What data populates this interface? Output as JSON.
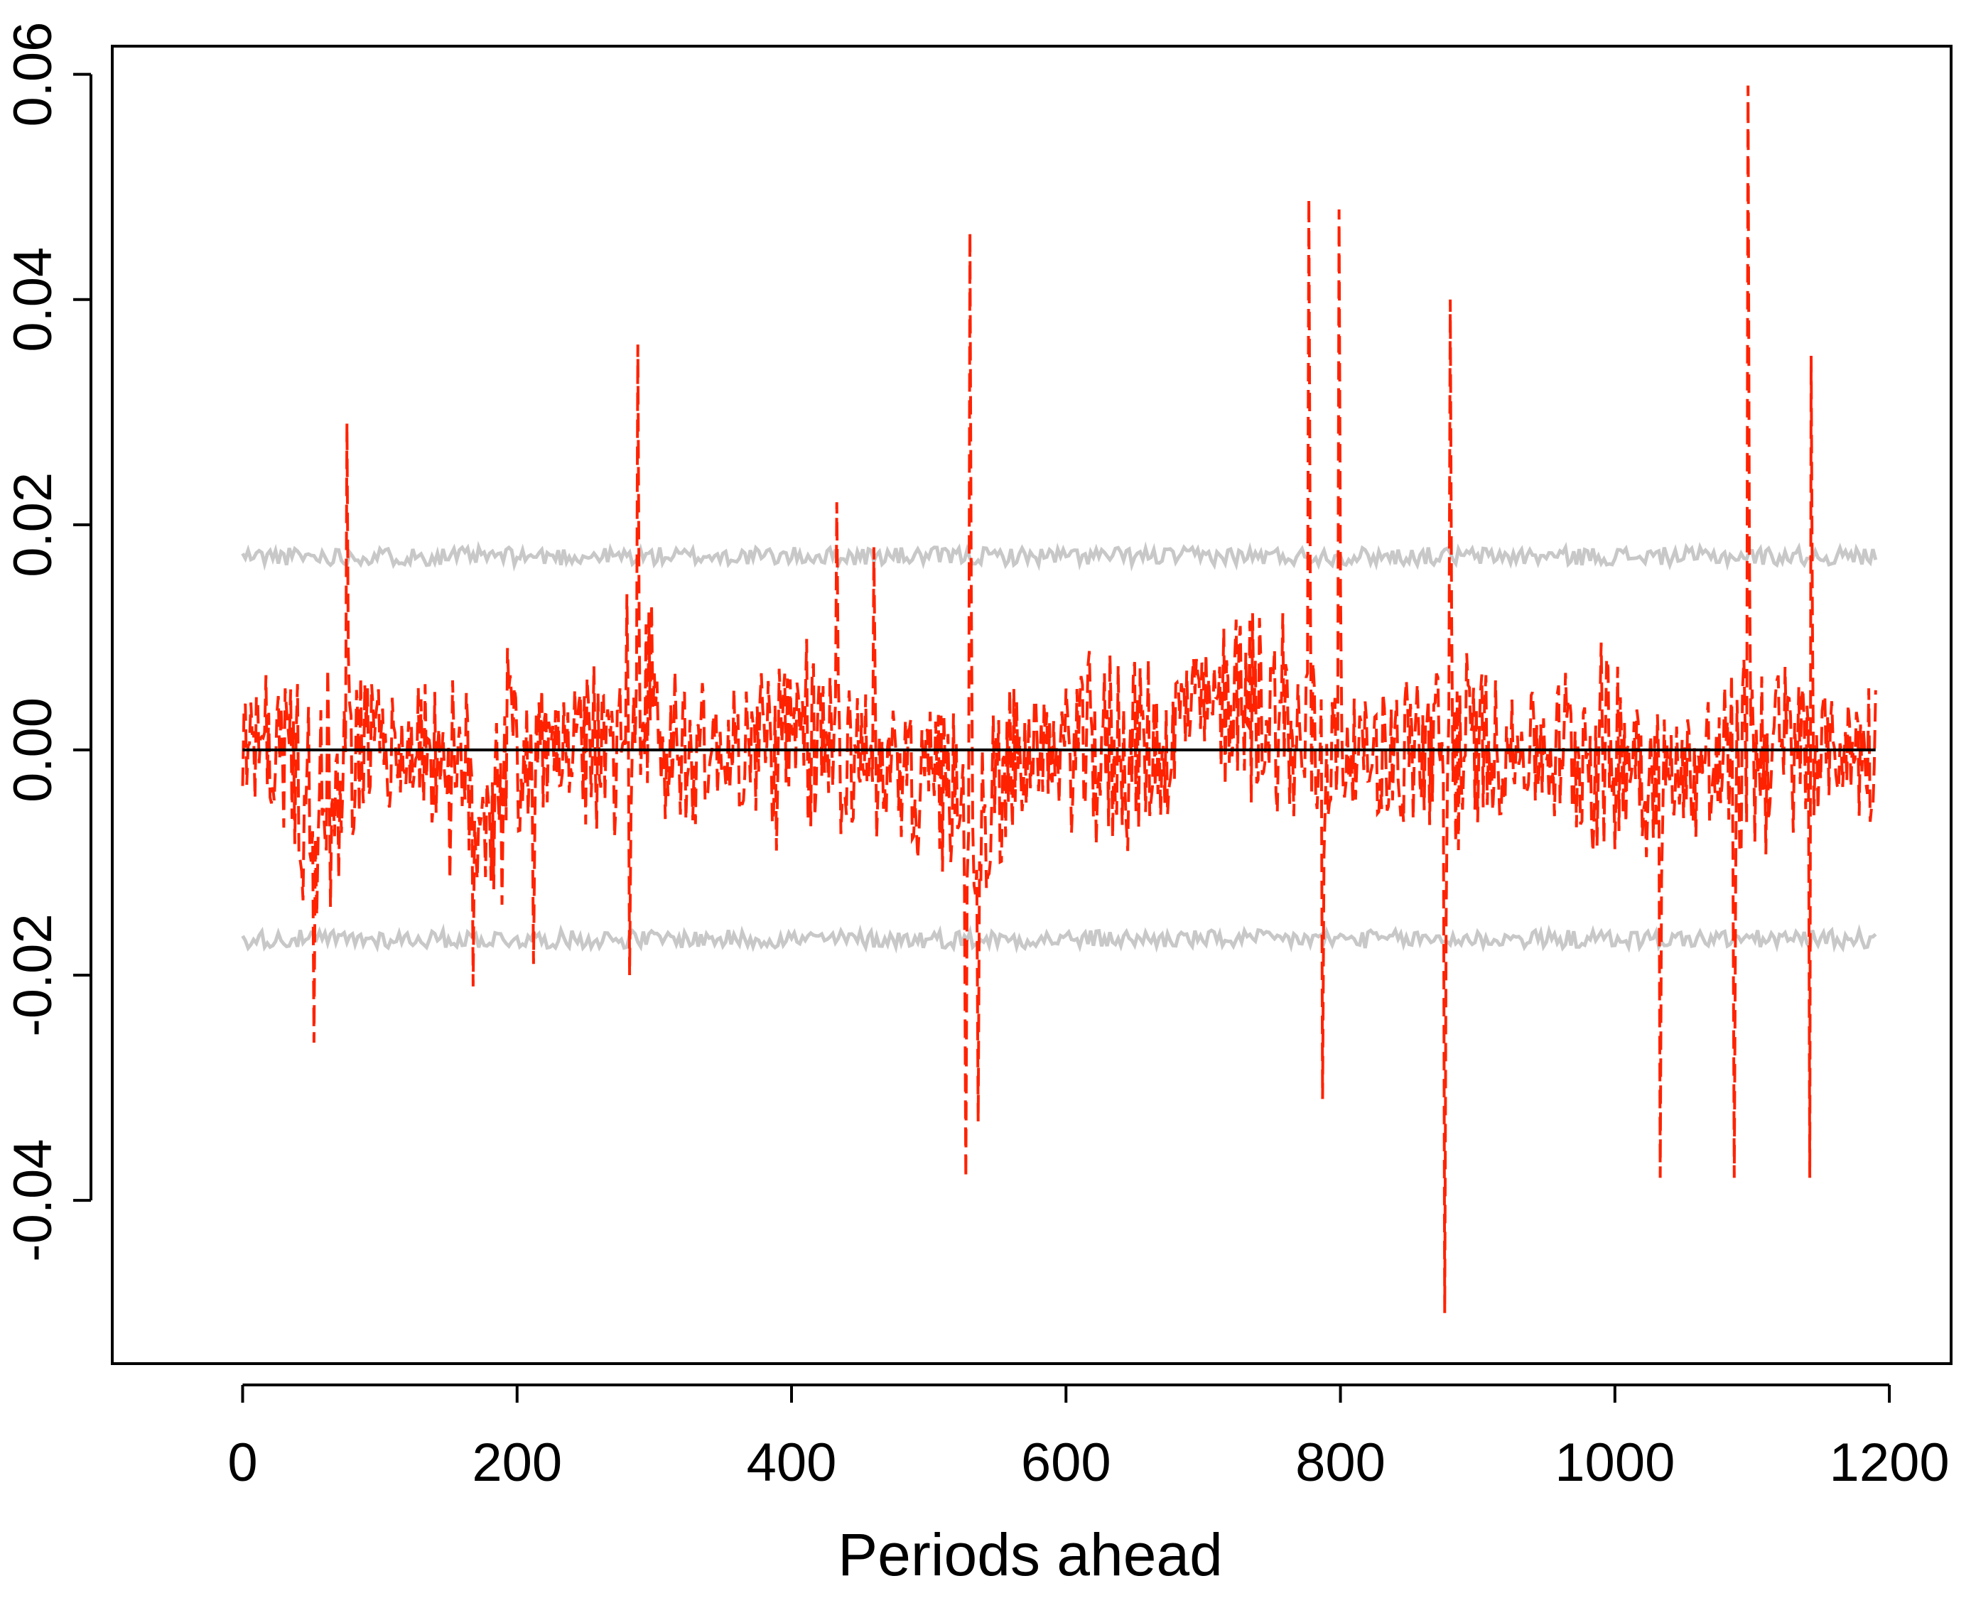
{
  "chart_data": {
    "type": "line",
    "title": "",
    "xlabel": "Periods ahead",
    "ylabel": "",
    "xlim": [
      -95,
      1245
    ],
    "ylim": [
      -0.0545,
      0.0625
    ],
    "x_ticks": [
      0,
      200,
      400,
      600,
      800,
      1000,
      1200
    ],
    "x_tick_labels": [
      "0",
      "200",
      "400",
      "600",
      "800",
      "1000",
      "1200"
    ],
    "y_ticks": [
      -0.04,
      -0.02,
      0.0,
      0.02,
      0.04,
      0.06
    ],
    "y_tick_labels": [
      "-0.04",
      "-0.02",
      "0.00",
      "0.02",
      "0.04",
      "0.06"
    ],
    "grid": false,
    "legend": "none",
    "n_periods": 1190,
    "series": [
      {
        "style": "solid",
        "color": "#c8c8c8",
        "level": 0.0172,
        "noise": 0.0008
      },
      {
        "style": "solid",
        "color": "#c8c8c8",
        "level": -0.0168,
        "noise": 0.0008
      },
      {
        "style": "solid",
        "color": "#000000",
        "level": 0.0
      },
      {
        "style": "dashed",
        "color": "#ff2200",
        "spikes": [
          {
            "x": 52,
            "y": -0.026
          },
          {
            "x": 76,
            "y": 0.029
          },
          {
            "x": 168,
            "y": -0.021
          },
          {
            "x": 212,
            "y": -0.019
          },
          {
            "x": 282,
            "y": -0.02
          },
          {
            "x": 288,
            "y": 0.036
          },
          {
            "x": 433,
            "y": 0.022
          },
          {
            "x": 460,
            "y": 0.018
          },
          {
            "x": 527,
            "y": -0.038
          },
          {
            "x": 530,
            "y": 0.046
          },
          {
            "x": 536,
            "y": -0.033
          },
          {
            "x": 777,
            "y": 0.049
          },
          {
            "x": 787,
            "y": -0.031
          },
          {
            "x": 799,
            "y": 0.048
          },
          {
            "x": 876,
            "y": -0.05
          },
          {
            "x": 880,
            "y": 0.04
          },
          {
            "x": 1033,
            "y": -0.038
          },
          {
            "x": 1087,
            "y": -0.038
          },
          {
            "x": 1097,
            "y": 0.059
          },
          {
            "x": 1142,
            "y": -0.038
          },
          {
            "x": 1143,
            "y": 0.035
          }
        ]
      }
    ]
  }
}
